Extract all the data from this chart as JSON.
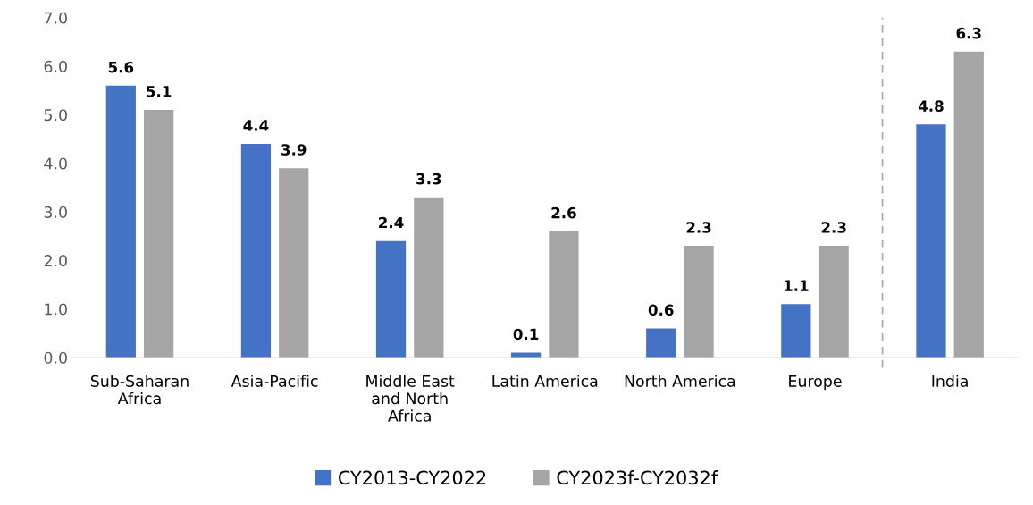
{
  "chart_data": {
    "type": "bar",
    "categories": [
      "Sub-Saharan\nAfrica",
      "Asia-Pacific",
      "Middle East\nand North\nAfrica",
      "Latin America",
      "North America",
      "Europe",
      "India"
    ],
    "series": [
      {
        "name": "CY2013-CY2022",
        "color": "#4472c4",
        "values": [
          5.6,
          4.4,
          2.4,
          0.1,
          0.6,
          1.1,
          4.8
        ]
      },
      {
        "name": "CY2023f-CY2032f",
        "color": "#a5a5a5",
        "values": [
          5.1,
          3.9,
          3.3,
          2.6,
          2.3,
          2.3,
          6.3
        ]
      }
    ],
    "ylim": [
      0,
      7
    ],
    "yticks": [
      {
        "value": 0,
        "label": "0.0"
      },
      {
        "value": 1,
        "label": "1.0"
      },
      {
        "value": 2,
        "label": "2.0"
      },
      {
        "value": 3,
        "label": "3.0"
      },
      {
        "value": 4,
        "label": "4.0"
      },
      {
        "value": 5,
        "label": "5.0"
      },
      {
        "value": 6,
        "label": "6.0"
      },
      {
        "value": 7,
        "label": "7.0"
      }
    ],
    "data_labels": true,
    "grid": false,
    "legend": "bottom"
  }
}
